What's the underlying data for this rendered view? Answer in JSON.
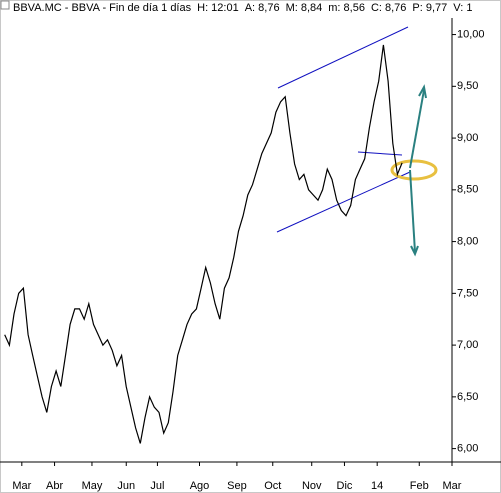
{
  "chart_data": {
    "type": "line",
    "title": "BBVA.MC - BBVA - Fin de día 1 días",
    "stats": [
      {
        "text": "H: 12:01",
        "color": "#000000"
      },
      {
        "text": "A: 8,76",
        "color": "#000000"
      },
      {
        "text": "M: 8,84",
        "color": "#000000"
      },
      {
        "text": "m: 8,56",
        "color": "#000000"
      },
      {
        "text": "C: 8,76",
        "color": "#000000"
      },
      {
        "text": "P: 9,77",
        "color": "#e00000"
      },
      {
        "text": "V: 1",
        "color": "#000000"
      }
    ],
    "color": "#000000",
    "x": [
      3,
      6,
      9,
      12,
      15,
      18,
      21,
      24,
      27,
      30,
      33,
      36,
      39,
      42,
      45,
      48,
      51,
      54,
      57,
      60,
      63,
      66,
      69,
      72,
      75,
      78,
      81,
      84,
      87,
      90,
      93,
      96,
      99,
      102,
      105,
      108,
      111,
      114,
      117,
      120,
      123,
      126,
      129,
      132,
      135,
      138,
      141,
      144,
      147,
      150,
      153,
      156,
      159,
      162,
      165,
      168,
      171,
      174,
      177,
      180,
      183,
      186,
      189,
      192,
      195,
      198,
      201,
      204,
      207,
      210,
      213,
      216,
      219,
      222,
      225,
      228,
      231,
      234,
      237,
      240,
      243,
      246,
      249,
      252,
      255,
      258
    ],
    "values": [
      7.1,
      7.0,
      7.3,
      7.5,
      7.55,
      7.1,
      6.9,
      6.7,
      6.5,
      6.35,
      6.6,
      6.75,
      6.6,
      6.9,
      7.2,
      7.35,
      7.35,
      7.25,
      7.4,
      7.2,
      7.1,
      7.0,
      7.05,
      6.95,
      6.8,
      6.9,
      6.6,
      6.4,
      6.2,
      6.05,
      6.3,
      6.5,
      6.4,
      6.35,
      6.15,
      6.25,
      6.55,
      6.9,
      7.05,
      7.2,
      7.3,
      7.35,
      7.55,
      7.75,
      7.6,
      7.4,
      7.25,
      7.55,
      7.65,
      7.85,
      8.1,
      8.25,
      8.45,
      8.55,
      8.7,
      8.85,
      8.95,
      9.05,
      9.25,
      9.35,
      9.4,
      9.05,
      8.75,
      8.6,
      8.65,
      8.5,
      8.45,
      8.4,
      8.5,
      8.7,
      8.6,
      8.4,
      8.3,
      8.25,
      8.35,
      8.6,
      8.7,
      8.8,
      9.1,
      9.35,
      9.55,
      9.9,
      9.55,
      8.95,
      8.65,
      8.76
    ],
    "xlim": [
      0,
      290
    ],
    "xticks": [
      {
        "value": 14,
        "label": "Mar"
      },
      {
        "value": 35,
        "label": "Abr"
      },
      {
        "value": 59,
        "label": "May"
      },
      {
        "value": 81,
        "label": "Jun"
      },
      {
        "value": 101,
        "label": "Jul"
      },
      {
        "value": 128,
        "label": "Ago"
      },
      {
        "value": 152,
        "label": "Sep"
      },
      {
        "value": 175,
        "label": "Oct"
      },
      {
        "value": 200,
        "label": "Nov"
      },
      {
        "value": 221,
        "label": "Dic"
      },
      {
        "value": 242,
        "label": "14"
      },
      {
        "value": 269,
        "label": "Feb"
      },
      {
        "value": 290,
        "label": "Mar"
      }
    ],
    "ylim": [
      5.89,
      10.16
    ],
    "yticks": [
      {
        "value": 6,
        "label": "6,00"
      },
      {
        "value": 6.5,
        "label": "6,50"
      },
      {
        "value": 7,
        "label": "7,00"
      },
      {
        "value": 7.5,
        "label": "7,50"
      },
      {
        "value": 8,
        "label": "8,00"
      },
      {
        "value": 8.5,
        "label": "8,50"
      },
      {
        "value": 9,
        "label": "9,00"
      },
      {
        "value": 9.5,
        "label": "9,50"
      },
      {
        "value": 10,
        "label": "10,00"
      }
    ]
  }
}
